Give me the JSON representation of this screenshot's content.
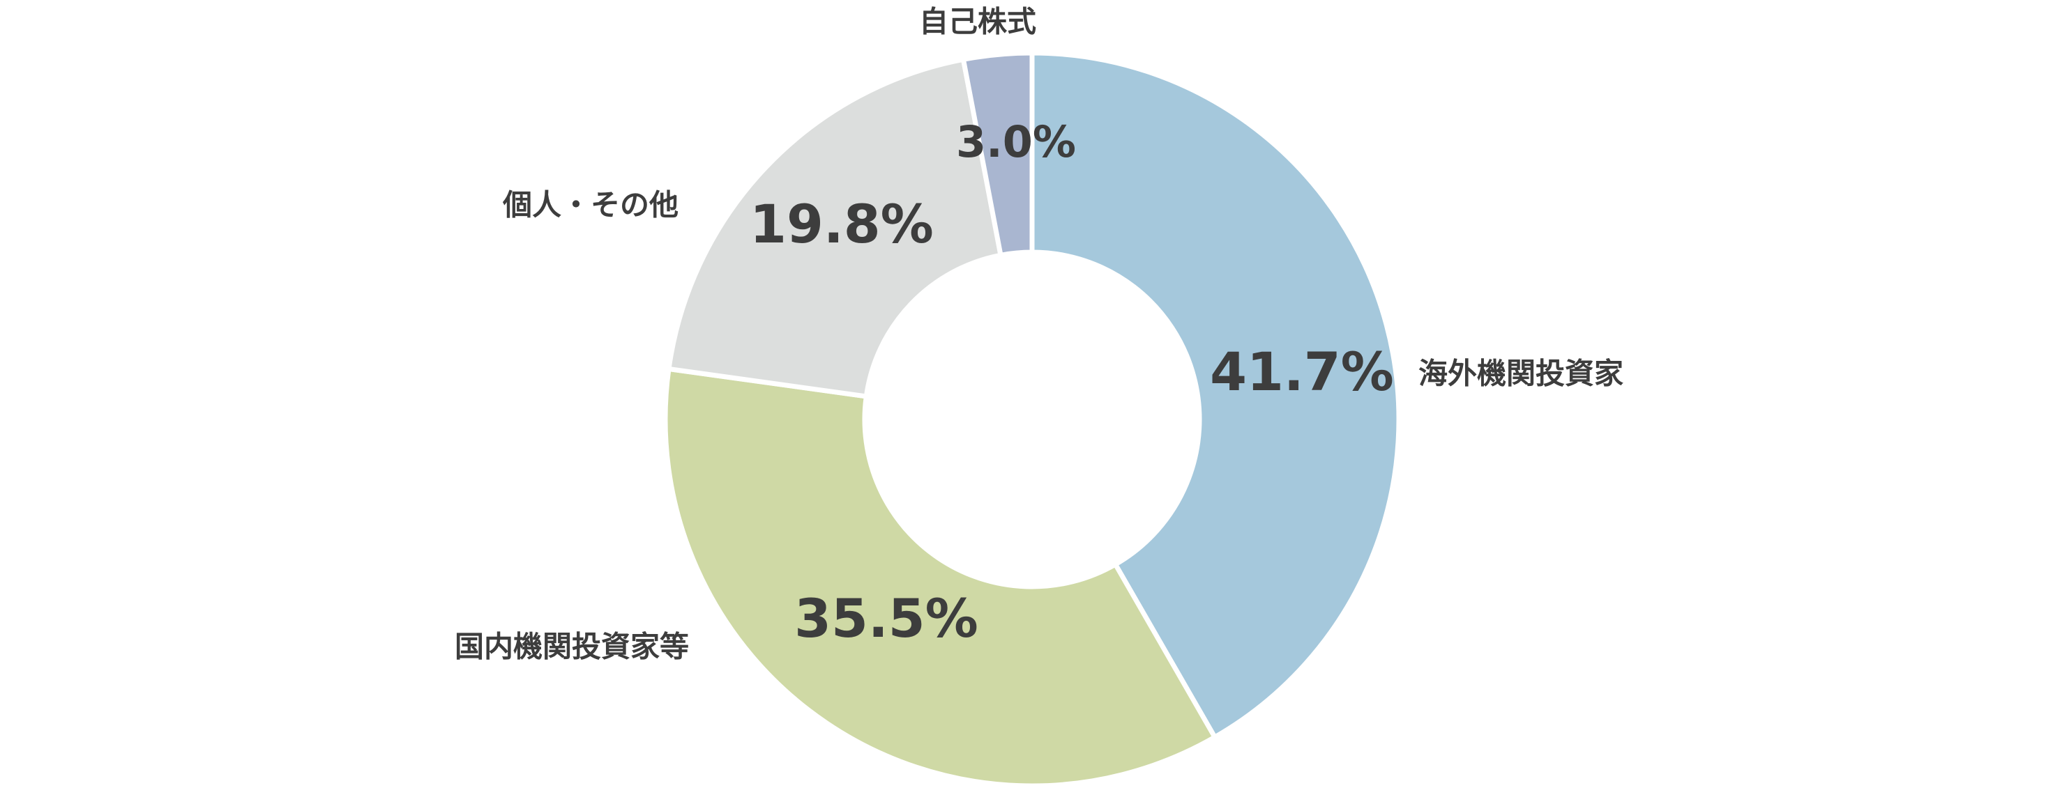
{
  "chart_data": {
    "type": "donut",
    "categories": [
      "海外機関投資家",
      "国内機関投資家等",
      "個人・その他",
      "自己株式"
    ],
    "values": [
      41.7,
      35.5,
      19.8,
      3.0
    ],
    "value_labels": [
      "41.7%",
      "35.5%",
      "19.8%",
      "3.0%"
    ],
    "colors": [
      "#a5c8dc",
      "#cfd9a5",
      "#dcdedd",
      "#a9b6d0"
    ]
  }
}
